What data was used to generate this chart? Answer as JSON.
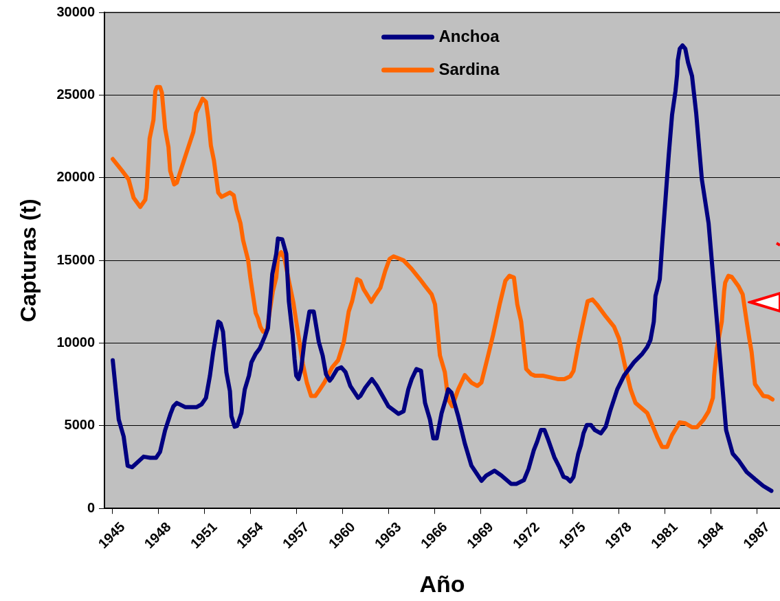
{
  "chart_data": {
    "type": "line",
    "xlabel": "Año",
    "ylabel": "Capturas (t)",
    "xlim": [
      1944.5,
      1988.5
    ],
    "ylim": [
      0,
      30000
    ],
    "xticks": [
      1945,
      1948,
      1951,
      1954,
      1957,
      1960,
      1963,
      1966,
      1969,
      1972,
      1975,
      1978,
      1981,
      1984,
      1987
    ],
    "yticks": [
      0,
      5000,
      10000,
      15000,
      20000,
      25000,
      30000
    ],
    "grid": "y",
    "legend": "top",
    "marker": "none",
    "line_style": "solid",
    "series": [
      {
        "name": "Anchoa",
        "color": "#000080",
        "x": [
          1945.04,
          1945.43,
          1945.75,
          1946.01,
          1946.3,
          1947.05,
          1947.48,
          1947.86,
          1948.12,
          1948.45,
          1948.82,
          1948.99,
          1949.21,
          1949.75,
          1950.51,
          1950.83,
          1951.11,
          1951.37,
          1951.58,
          1951.91,
          1952.06,
          1952.22,
          1952.44,
          1952.67,
          1952.77,
          1952.98,
          1953.14,
          1953.42,
          1953.64,
          1953.91,
          1954.07,
          1954.35,
          1954.61,
          1954.94,
          1955.15,
          1955.43,
          1955.69,
          1955.8,
          1956.08,
          1956.34,
          1956.51,
          1956.76,
          1956.88,
          1956.99,
          1957.14,
          1957.31,
          1957.52,
          1957.74,
          1957.85,
          1958.13,
          1958.46,
          1958.71,
          1958.93,
          1959.17,
          1959.33,
          1959.66,
          1959.93,
          1960.2,
          1960.51,
          1961.02,
          1961.17,
          1961.49,
          1961.92,
          1962.24,
          1963.0,
          1963.65,
          1963.98,
          1964.29,
          1964.51,
          1964.82,
          1965.12,
          1965.38,
          1965.7,
          1965.92,
          1966.14,
          1966.46,
          1966.72,
          1966.89,
          1967.1,
          1967.54,
          1967.97,
          1968.4,
          1969.06,
          1969.37,
          1969.9,
          1970.35,
          1970.99,
          1971.32,
          1971.82,
          1972.12,
          1972.46,
          1972.68,
          1972.93,
          1973.16,
          1973.37,
          1973.8,
          1974.13,
          1974.4,
          1974.63,
          1974.84,
          1975.05,
          1975.36,
          1975.53,
          1975.7,
          1975.92,
          1976.18,
          1976.44,
          1976.83,
          1977.15,
          1977.43,
          1977.9,
          1978.34,
          1978.99,
          1979.53,
          1979.85,
          1980.06,
          1980.28,
          1980.39,
          1980.67,
          1980.82,
          1981.04,
          1981.25,
          1981.47,
          1981.69,
          1981.8,
          1981.84,
          1981.97,
          1982.15,
          1982.33,
          1982.51,
          1982.77,
          1983.04,
          1983.41,
          1983.85,
          1984.28,
          1984.71,
          1984.99,
          1985.42,
          1985.79,
          1986.33,
          1986.87,
          1987.41,
          1987.94
        ],
        "values": [
          8960,
          5370,
          4350,
          2580,
          2490,
          3130,
          3060,
          3060,
          3420,
          4730,
          5770,
          6170,
          6380,
          6130,
          6130,
          6300,
          6680,
          8030,
          9460,
          11300,
          11200,
          10690,
          8240,
          7100,
          5580,
          4940,
          4990,
          5770,
          7200,
          8030,
          8830,
          9350,
          9670,
          10390,
          10900,
          14170,
          15400,
          16320,
          16270,
          15400,
          12530,
          10480,
          9040,
          8030,
          7820,
          8430,
          10070,
          11300,
          11910,
          11910,
          10070,
          9250,
          8120,
          7730,
          7920,
          8430,
          8530,
          8240,
          7410,
          6690,
          6800,
          7310,
          7820,
          7410,
          6170,
          5720,
          5870,
          7200,
          7820,
          8430,
          8320,
          6380,
          5370,
          4230,
          4230,
          5770,
          6590,
          7200,
          7000,
          5580,
          3930,
          2590,
          1670,
          1990,
          2280,
          1990,
          1480,
          1480,
          1710,
          2390,
          3510,
          4030,
          4740,
          4740,
          4230,
          3100,
          2490,
          1910,
          1830,
          1630,
          1910,
          3310,
          3820,
          4540,
          5050,
          5050,
          4740,
          4540,
          4940,
          5870,
          7200,
          8030,
          8840,
          9350,
          9760,
          10180,
          11300,
          12840,
          13860,
          15910,
          18670,
          21340,
          23800,
          25230,
          26260,
          27080,
          27800,
          28000,
          27800,
          26970,
          26150,
          23910,
          19900,
          17240,
          12530,
          7820,
          4740,
          3310,
          2920,
          2200,
          1770,
          1360,
          1060
        ]
      },
      {
        "name": "Sardina",
        "color": "#ff6600",
        "x": [
          1945.04,
          1945.65,
          1946.07,
          1946.4,
          1946.83,
          1947.16,
          1947.26,
          1947.44,
          1947.69,
          1947.81,
          1947.91,
          1948.12,
          1948.24,
          1948.45,
          1948.67,
          1948.78,
          1949.04,
          1949.21,
          1949.75,
          1950.29,
          1950.46,
          1950.72,
          1950.89,
          1951.11,
          1951.26,
          1951.43,
          1951.63,
          1951.91,
          1952.13,
          1952.67,
          1952.92,
          1953.1,
          1953.36,
          1953.53,
          1953.86,
          1954.0,
          1954.35,
          1954.5,
          1954.65,
          1954.83,
          1955.08,
          1955.26,
          1955.47,
          1955.69,
          1955.8,
          1956.01,
          1956.23,
          1956.51,
          1956.81,
          1956.99,
          1957.2,
          1957.42,
          1957.68,
          1957.96,
          1958.23,
          1958.46,
          1958.82,
          1959.17,
          1959.33,
          1959.72,
          1960.09,
          1960.41,
          1960.63,
          1960.95,
          1961.17,
          1961.38,
          1961.66,
          1961.88,
          1962.1,
          1962.47,
          1962.79,
          1963.07,
          1963.33,
          1963.98,
          1964.51,
          1965.05,
          1965.38,
          1965.81,
          1966.03,
          1966.35,
          1966.67,
          1966.89,
          1967.15,
          1967.54,
          1967.97,
          1968.4,
          1968.79,
          1969.05,
          1969.49,
          1969.81,
          1970.24,
          1970.61,
          1970.88,
          1971.17,
          1971.39,
          1971.64,
          1971.97,
          1972.29,
          1972.53,
          1973.04,
          1974.02,
          1974.45,
          1974.84,
          1975.05,
          1975.36,
          1975.64,
          1975.97,
          1976.29,
          1976.57,
          1977.15,
          1977.69,
          1978.01,
          1978.45,
          1978.77,
          1979.09,
          1979.85,
          1980.18,
          1980.5,
          1980.82,
          1981.15,
          1981.47,
          1981.97,
          1982.33,
          1982.77,
          1983.09,
          1983.52,
          1983.85,
          1984.13,
          1984.21,
          1984.39,
          1984.71,
          1984.86,
          1984.93,
          1985.14,
          1985.36,
          1985.79,
          1986.07,
          1986.33,
          1986.5,
          1986.65,
          1986.87,
          1987.41,
          1987.73,
          1988.01
        ],
        "values": [
          21130,
          20420,
          19900,
          18780,
          18230,
          18670,
          19390,
          22360,
          23490,
          25230,
          25480,
          25480,
          25140,
          22980,
          21850,
          20420,
          19600,
          19700,
          21250,
          22770,
          23900,
          24420,
          24780,
          24580,
          23590,
          21950,
          21040,
          19100,
          18840,
          19100,
          18930,
          18060,
          17240,
          16220,
          15000,
          13960,
          11810,
          11500,
          10990,
          10690,
          10790,
          11910,
          13140,
          13960,
          15190,
          15500,
          15090,
          13760,
          12420,
          11300,
          10070,
          8750,
          7610,
          6800,
          6800,
          7100,
          7610,
          8240,
          8530,
          8960,
          10070,
          11910,
          12530,
          13860,
          13760,
          13250,
          12840,
          12490,
          12840,
          13350,
          14370,
          15090,
          15240,
          15000,
          14480,
          13860,
          13450,
          12940,
          12340,
          9250,
          8240,
          6590,
          6180,
          7200,
          8060,
          7610,
          7410,
          7610,
          9250,
          10480,
          12340,
          13760,
          14070,
          13960,
          12340,
          11300,
          8430,
          8120,
          8030,
          8030,
          7820,
          7820,
          7990,
          8320,
          9870,
          11100,
          12530,
          12630,
          12340,
          11610,
          10990,
          10280,
          8430,
          7200,
          6380,
          5770,
          5050,
          4330,
          3720,
          3720,
          4440,
          5200,
          5150,
          4910,
          4910,
          5370,
          5870,
          6690,
          8030,
          9670,
          11300,
          13140,
          13650,
          14070,
          14000,
          13450,
          12940,
          11300,
          10280,
          9460,
          7520,
          6800,
          6760,
          6590
        ]
      }
    ]
  }
}
